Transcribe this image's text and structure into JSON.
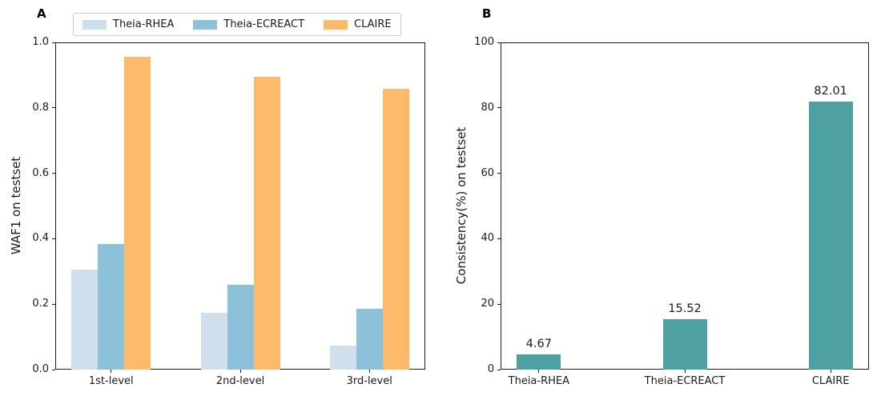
{
  "chart_data": [
    {
      "type": "bar",
      "title": "A",
      "categories": [
        "1st-level",
        "2nd-level",
        "3rd-level"
      ],
      "series": [
        {
          "name": "Theia-RHEA",
          "color": "#cfe0ec",
          "values": [
            0.305,
            0.173,
            0.073
          ]
        },
        {
          "name": "Theia-ECREACT",
          "color": "#8dc1da",
          "values": [
            0.385,
            0.258,
            0.186
          ]
        },
        {
          "name": "CLAIRE",
          "color": "#fdba6b",
          "values": [
            0.956,
            0.896,
            0.859
          ]
        }
      ],
      "xlabel": "",
      "ylabel": "WAF1 on testset",
      "ylim": [
        0,
        1.0
      ],
      "yticks": [
        0,
        0.2,
        0.4,
        0.6,
        0.8,
        1.0
      ],
      "ytick_labels": [
        "0.0",
        "0.2",
        "0.4",
        "0.6",
        "0.8",
        "1.0"
      ],
      "legend_position": "above-plot-center",
      "grid": false
    },
    {
      "type": "bar",
      "title": "B",
      "categories": [
        "Theia-RHEA",
        "Theia-ECREACT",
        "CLAIRE"
      ],
      "series": [
        {
          "name": "Consistency(%)",
          "color": "#4fa1a1",
          "values": [
            4.67,
            15.52,
            82.01
          ]
        }
      ],
      "bar_labels": [
        "4.67",
        "15.52",
        "82.01"
      ],
      "xlabel": "",
      "ylabel": "Consistency(%) on testset",
      "ylim": [
        0,
        100
      ],
      "yticks": [
        0,
        20,
        40,
        60,
        80,
        100
      ],
      "ytick_labels": [
        "0",
        "20",
        "40",
        "60",
        "80",
        "100"
      ],
      "legend_position": "none",
      "grid": false
    }
  ]
}
